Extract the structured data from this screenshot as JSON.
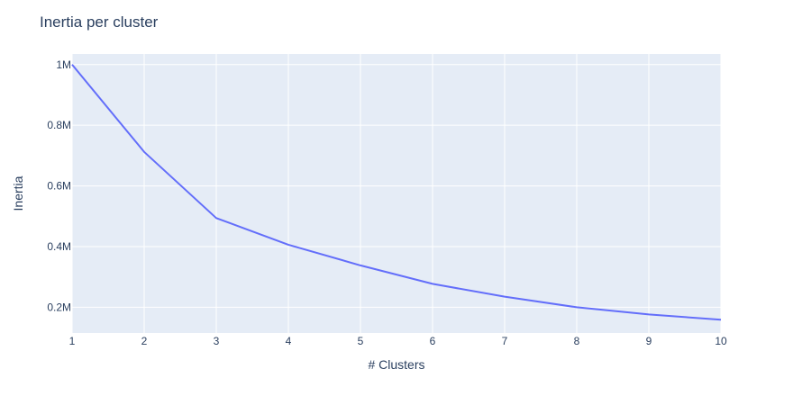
{
  "chart_data": {
    "type": "line",
    "title": "Inertia per cluster",
    "xlabel": "# Clusters",
    "ylabel": "Inertia",
    "x": [
      1,
      2,
      3,
      4,
      5,
      6,
      7,
      8,
      9,
      10
    ],
    "series": [
      {
        "values": [
          1000000,
          712000,
          494000,
          406000,
          338000,
          277000,
          235000,
          200000,
          176000,
          159000
        ]
      }
    ],
    "xlim": [
      1,
      10
    ],
    "ylim": [
      115000,
      1035000
    ],
    "x_ticks": [
      {
        "value": 1,
        "label": "1"
      },
      {
        "value": 2,
        "label": "2"
      },
      {
        "value": 3,
        "label": "3"
      },
      {
        "value": 4,
        "label": "4"
      },
      {
        "value": 5,
        "label": "5"
      },
      {
        "value": 6,
        "label": "6"
      },
      {
        "value": 7,
        "label": "7"
      },
      {
        "value": 8,
        "label": "8"
      },
      {
        "value": 9,
        "label": "9"
      },
      {
        "value": 10,
        "label": "10"
      }
    ],
    "y_ticks": [
      {
        "value": 200000,
        "label": "0.2M"
      },
      {
        "value": 400000,
        "label": "0.4M"
      },
      {
        "value": 600000,
        "label": "0.6M"
      },
      {
        "value": 800000,
        "label": "0.8M"
      },
      {
        "value": 1000000,
        "label": "1M"
      }
    ],
    "grid": true,
    "legend": "none",
    "colors": {
      "line": "#636efa",
      "plot_bg": "#e5ecf6",
      "grid": "#ffffff",
      "text": "#2a3f5f"
    }
  }
}
